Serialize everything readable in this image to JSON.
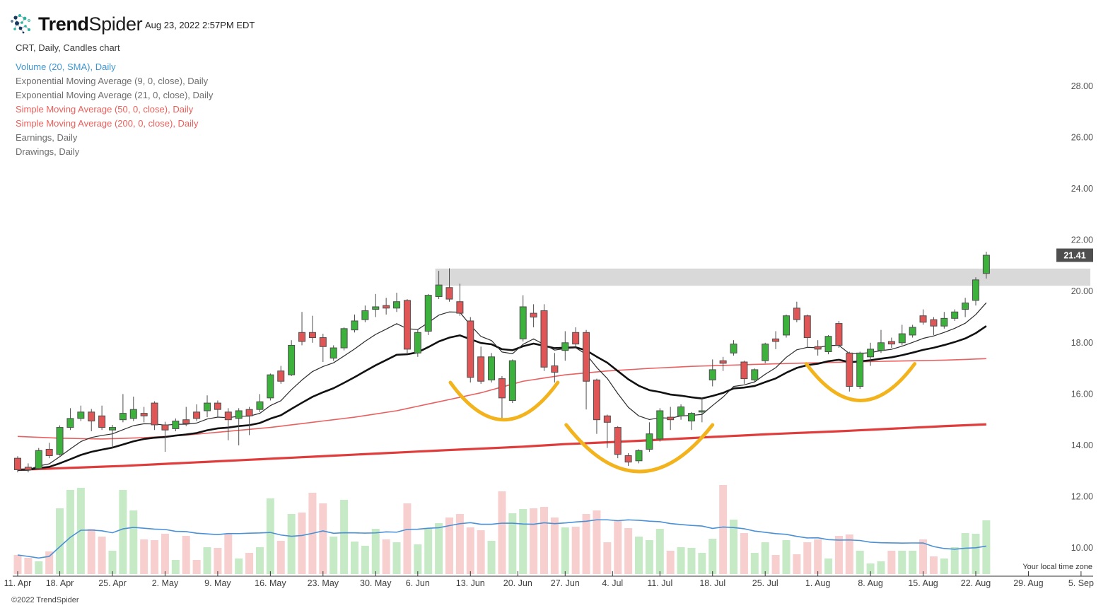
{
  "header": {
    "brand_bold": "Trend",
    "brand_light": "Spider",
    "timestamp": "Aug 23, 2022 2:57PM EDT"
  },
  "legend": {
    "title": "CRT, Daily, Candles chart",
    "items": [
      {
        "label": "Volume (20, SMA), Daily",
        "color": "#3d96d2"
      },
      {
        "label": "Exponential Moving Average (9, 0, close), Daily",
        "color": "#6e6e6e"
      },
      {
        "label": "Exponential Moving Average (21, 0, close), Daily",
        "color": "#6e6e6e"
      },
      {
        "label": "Simple Moving Average (50, 0, close), Daily",
        "color": "#ed5f5a"
      },
      {
        "label": "Simple Moving Average (200, 0, close), Daily",
        "color": "#ed5f5a"
      },
      {
        "label": "Earnings, Daily",
        "color": "#6e6e6e"
      },
      {
        "label": "Drawings, Daily",
        "color": "#6e6e6e"
      }
    ]
  },
  "footer": {
    "copyright": "©2022 TrendSpider",
    "timezone_note": "Your local time zone"
  },
  "price_axis": {
    "labels": [
      "28.00",
      "26.00",
      "24.00",
      "22.00",
      "20.00",
      "18.00",
      "16.00",
      "14.00",
      "12.00",
      "10.00"
    ],
    "last_price": "21.41"
  },
  "x_axis": {
    "ticks": [
      {
        "label": "11. Apr",
        "index": 0
      },
      {
        "label": "18. Apr",
        "index": 4
      },
      {
        "label": "25. Apr",
        "index": 9
      },
      {
        "label": "2. May",
        "index": 14
      },
      {
        "label": "9. May",
        "index": 19
      },
      {
        "label": "16. May",
        "index": 24
      },
      {
        "label": "23. May",
        "index": 29
      },
      {
        "label": "30. May",
        "index": 34
      },
      {
        "label": "6. Jun",
        "index": 38
      },
      {
        "label": "13. Jun",
        "index": 43
      },
      {
        "label": "20. Jun",
        "index": 47.5
      },
      {
        "label": "27. Jun",
        "index": 52
      },
      {
        "label": "4. Jul",
        "index": 56.5
      },
      {
        "label": "11. Jul",
        "index": 61
      },
      {
        "label": "18. Jul",
        "index": 66
      },
      {
        "label": "25. Jul",
        "index": 71
      },
      {
        "label": "1. Aug",
        "index": 76
      },
      {
        "label": "8. Aug",
        "index": 81
      },
      {
        "label": "15. Aug",
        "index": 86
      },
      {
        "label": "22. Aug",
        "index": 91
      },
      {
        "label": "29. Aug",
        "index": 96
      },
      {
        "label": "5. Sep",
        "index": 101
      }
    ]
  },
  "chart_data": {
    "type": "candlestick",
    "symbol": "CRT",
    "timeframe": "Daily",
    "ylim": [
      9.0,
      28.5
    ],
    "grid": false,
    "candles_format": [
      "date",
      "open",
      "high",
      "low",
      "close"
    ],
    "candles": [
      [
        "Apr 11",
        13.5,
        13.58,
        12.95,
        13.05
      ],
      [
        "Apr 12",
        13.15,
        13.3,
        12.95,
        13.05
      ],
      [
        "Apr 13",
        13.1,
        13.9,
        13.05,
        13.8
      ],
      [
        "Apr 14",
        13.85,
        14.1,
        13.5,
        13.6
      ],
      [
        "Apr 18",
        13.65,
        14.78,
        13.6,
        14.7
      ],
      [
        "Apr 19",
        14.7,
        15.45,
        14.6,
        15.05
      ],
      [
        "Apr 20",
        15.05,
        15.55,
        14.95,
        15.3
      ],
      [
        "Apr 21",
        15.3,
        15.42,
        14.55,
        14.95
      ],
      [
        "Apr 22",
        15.15,
        15.55,
        14.6,
        14.7
      ],
      [
        "Apr 25",
        14.6,
        14.8,
        13.9,
        14.7
      ],
      [
        "Apr 26",
        15.0,
        16.0,
        14.9,
        15.25
      ],
      [
        "Apr 27",
        15.05,
        15.9,
        14.95,
        15.4
      ],
      [
        "Apr 28",
        15.25,
        15.5,
        14.9,
        15.15
      ],
      [
        "Apr 29",
        15.65,
        15.72,
        14.6,
        14.8
      ],
      [
        "May 2",
        14.8,
        14.92,
        13.75,
        14.6
      ],
      [
        "May 3",
        14.65,
        15.05,
        14.55,
        14.95
      ],
      [
        "May 4",
        15.0,
        15.5,
        14.75,
        14.85
      ],
      [
        "May 5",
        15.3,
        15.6,
        14.95,
        15.05
      ],
      [
        "May 6",
        15.35,
        15.95,
        15.1,
        15.65
      ],
      [
        "May 9",
        15.65,
        15.75,
        15.1,
        15.4
      ],
      [
        "May 10",
        15.3,
        15.45,
        14.2,
        15.0
      ],
      [
        "May 11",
        15.05,
        15.45,
        14.0,
        15.35
      ],
      [
        "May 12",
        15.4,
        15.5,
        14.4,
        15.15
      ],
      [
        "May 13",
        15.4,
        16.0,
        15.3,
        15.7
      ],
      [
        "May 16",
        15.85,
        16.8,
        15.75,
        16.75
      ],
      [
        "May 17",
        16.9,
        17.1,
        16.4,
        16.5
      ],
      [
        "May 18",
        16.75,
        18.1,
        16.7,
        17.9
      ],
      [
        "May 19",
        18.4,
        19.2,
        17.9,
        18.05
      ],
      [
        "May 20",
        18.4,
        19.05,
        18.0,
        18.2
      ],
      [
        "May 23",
        18.2,
        18.35,
        17.25,
        17.85
      ],
      [
        "May 24",
        17.4,
        17.9,
        17.3,
        17.8
      ],
      [
        "May 25",
        17.8,
        18.6,
        17.7,
        18.55
      ],
      [
        "May 26",
        18.5,
        19.1,
        18.4,
        18.85
      ],
      [
        "May 27",
        18.9,
        19.45,
        18.8,
        19.25
      ],
      [
        "May 31",
        19.3,
        19.9,
        19.0,
        19.4
      ],
      [
        "Jun 1",
        19.45,
        19.75,
        19.1,
        19.35
      ],
      [
        "Jun 2",
        19.35,
        19.95,
        19.2,
        19.6
      ],
      [
        "Jun 3",
        19.65,
        19.7,
        17.55,
        17.75
      ],
      [
        "Jun 6",
        17.6,
        18.5,
        17.45,
        18.4
      ],
      [
        "Jun 7",
        18.45,
        19.9,
        18.3,
        19.85
      ],
      [
        "Jun 8",
        19.8,
        20.8,
        19.7,
        20.25
      ],
      [
        "Jun 9",
        20.15,
        20.9,
        19.6,
        19.7
      ],
      [
        "Jun 10",
        19.6,
        20.3,
        19.05,
        19.15
      ],
      [
        "Jun 13",
        18.85,
        19.0,
        16.45,
        16.65
      ],
      [
        "Jun 14",
        17.45,
        17.85,
        16.4,
        16.5
      ],
      [
        "Jun 15",
        16.55,
        17.6,
        16.45,
        17.45
      ],
      [
        "Jun 16",
        16.6,
        16.7,
        15.05,
        15.85
      ],
      [
        "Jun 17",
        15.75,
        17.35,
        15.65,
        17.3
      ],
      [
        "Jun 21",
        18.15,
        19.85,
        18.05,
        19.4
      ],
      [
        "Jun 22",
        19.15,
        19.5,
        18.6,
        19.0
      ],
      [
        "Jun 23",
        19.25,
        19.5,
        16.9,
        17.05
      ],
      [
        "Jun 24",
        17.1,
        17.6,
        16.45,
        16.85
      ],
      [
        "Jun 27",
        17.7,
        18.45,
        17.3,
        18.0
      ],
      [
        "Jun 28",
        18.4,
        18.6,
        17.85,
        17.95
      ],
      [
        "Jun 29",
        18.4,
        18.5,
        15.4,
        16.5
      ],
      [
        "Jun 30",
        16.55,
        16.6,
        14.45,
        15.0
      ],
      [
        "Jul 1",
        15.15,
        15.2,
        13.9,
        14.9
      ],
      [
        "Jul 5",
        14.7,
        14.75,
        13.5,
        13.65
      ],
      [
        "Jul 6",
        13.6,
        13.7,
        13.2,
        13.35
      ],
      [
        "Jul 7",
        13.4,
        13.85,
        13.3,
        13.8
      ],
      [
        "Jul 8",
        13.85,
        14.9,
        13.75,
        14.45
      ],
      [
        "Jul 11",
        14.25,
        15.45,
        14.15,
        15.35
      ],
      [
        "Jul 12",
        15.1,
        15.5,
        14.6,
        15.0
      ],
      [
        "Jul 13",
        15.15,
        15.6,
        15.0,
        15.5
      ],
      [
        "Jul 14",
        14.95,
        15.3,
        14.6,
        15.25
      ],
      [
        "Jul 15",
        15.3,
        15.85,
        14.9,
        15.35
      ],
      [
        "Jul 18",
        16.55,
        17.35,
        16.3,
        16.95
      ],
      [
        "Jul 19",
        17.3,
        17.45,
        16.9,
        17.2
      ],
      [
        "Jul 20",
        17.6,
        18.1,
        17.5,
        17.95
      ],
      [
        "Jul 21",
        17.25,
        17.3,
        16.4,
        16.6
      ],
      [
        "Jul 22",
        16.55,
        17.0,
        16.45,
        16.95
      ],
      [
        "Jul 25",
        17.3,
        18.0,
        17.2,
        17.95
      ],
      [
        "Jul 26",
        18.15,
        18.45,
        17.75,
        18.05
      ],
      [
        "Jul 27",
        18.3,
        19.1,
        18.2,
        19.05
      ],
      [
        "Jul 28",
        19.35,
        19.6,
        18.8,
        18.9
      ],
      [
        "Jul 29",
        19.05,
        19.1,
        17.8,
        18.2
      ],
      [
        "Aug 1",
        17.85,
        18.1,
        17.5,
        17.75
      ],
      [
        "Aug 2",
        17.65,
        18.3,
        17.55,
        18.25
      ],
      [
        "Aug 3",
        18.75,
        18.85,
        17.8,
        17.9
      ],
      [
        "Aug 4",
        17.6,
        17.65,
        16.1,
        16.3
      ],
      [
        "Aug 5",
        16.3,
        17.65,
        16.2,
        17.6
      ],
      [
        "Aug 8",
        17.45,
        18.0,
        17.1,
        17.75
      ],
      [
        "Aug 9",
        17.7,
        18.5,
        17.6,
        18.0
      ],
      [
        "Aug 10",
        18.05,
        18.2,
        17.8,
        17.95
      ],
      [
        "Aug 11",
        18.0,
        18.7,
        17.9,
        18.35
      ],
      [
        "Aug 12",
        18.3,
        18.7,
        18.2,
        18.6
      ],
      [
        "Aug 15",
        19.05,
        19.3,
        18.7,
        18.8
      ],
      [
        "Aug 16",
        18.9,
        19.0,
        18.3,
        18.65
      ],
      [
        "Aug 17",
        18.65,
        19.2,
        18.55,
        18.95
      ],
      [
        "Aug 18",
        18.95,
        19.3,
        18.85,
        19.2
      ],
      [
        "Aug 19",
        19.3,
        19.75,
        19.0,
        19.55
      ],
      [
        "Aug 22",
        19.65,
        20.55,
        19.45,
        20.45
      ],
      [
        "Aug 23",
        20.7,
        21.55,
        20.5,
        21.41
      ]
    ],
    "volume_relative": [
      27,
      23,
      18,
      32,
      93,
      119,
      122,
      64,
      53,
      33,
      119,
      90,
      49,
      48,
      57,
      20,
      54,
      20,
      38,
      37,
      57,
      22,
      30,
      38,
      107,
      47,
      85,
      87,
      115,
      100,
      53,
      105,
      46,
      40,
      64,
      49,
      45,
      100,
      42,
      65,
      72,
      80,
      85,
      66,
      62,
      47,
      117,
      86,
      92,
      93,
      95,
      80,
      66,
      67,
      85,
      90,
      45,
      75,
      65,
      53,
      48,
      64,
      33,
      38,
      37,
      30,
      50,
      126,
      77,
      58,
      30,
      45,
      27,
      48,
      28,
      45,
      49,
      22,
      54,
      56,
      33,
      15,
      18,
      33,
      33,
      33,
      49,
      25,
      22,
      38,
      58,
      57,
      76
    ],
    "overlays": {
      "ema9": {
        "period": 9
      },
      "ema21": {
        "period": 21
      },
      "volume_sma": {
        "period": 20
      },
      "sma50": {
        "period": 50,
        "points": [
          [
            0,
            14.35
          ],
          [
            4,
            14.28
          ],
          [
            8,
            14.25
          ],
          [
            12,
            14.3
          ],
          [
            16,
            14.4
          ],
          [
            20,
            14.55
          ],
          [
            24,
            14.7
          ],
          [
            28,
            14.9
          ],
          [
            32,
            15.1
          ],
          [
            36,
            15.35
          ],
          [
            40,
            15.7
          ],
          [
            44,
            16.05
          ],
          [
            48,
            16.5
          ],
          [
            52,
            16.75
          ],
          [
            56,
            16.9
          ],
          [
            60,
            17.0
          ],
          [
            64,
            17.08
          ],
          [
            68,
            17.13
          ],
          [
            72,
            17.18
          ],
          [
            76,
            17.22
          ],
          [
            80,
            17.26
          ],
          [
            84,
            17.29
          ],
          [
            88,
            17.32
          ],
          [
            92,
            17.38
          ]
        ]
      },
      "sma200": {
        "period": 200,
        "points": [
          [
            0,
            13.05
          ],
          [
            10,
            13.2
          ],
          [
            20,
            13.4
          ],
          [
            30,
            13.6
          ],
          [
            40,
            13.8
          ],
          [
            48,
            13.95
          ],
          [
            52,
            14.05
          ],
          [
            56,
            14.12
          ],
          [
            60,
            14.2
          ],
          [
            66,
            14.33
          ],
          [
            72,
            14.45
          ],
          [
            78,
            14.55
          ],
          [
            84,
            14.67
          ],
          [
            88,
            14.75
          ],
          [
            92,
            14.82
          ]
        ]
      }
    },
    "drawings": {
      "resistance_zone": {
        "start_index": 40,
        "price_top": 20.89,
        "price_bottom": 20.22,
        "extends_right": true
      },
      "arcs": [
        {
          "start_index": 41.1,
          "end_index": 51.3,
          "price_ends": 16.45,
          "price_bottom": 15.0
        },
        {
          "start_index": 52.1,
          "end_index": 66.0,
          "price_ends": 14.8,
          "price_bottom": 12.98
        },
        {
          "start_index": 74.9,
          "end_index": 85.2,
          "price_ends": 17.18,
          "price_bottom": 15.75
        }
      ]
    }
  },
  "colors": {
    "candle_up": "#3cb23c",
    "candle_down": "#e05656",
    "candle_border": "#4d4d4d",
    "wick": "#4d4d4d",
    "volume_up": "#c6e9c6",
    "volume_down": "#f8cfcf",
    "volume_ma": "#4a90d5",
    "ema9": "#2b2b2b",
    "ema21": "#111111",
    "sma50": "#e96060",
    "sma200": "#e03c3c",
    "zone_gray": "#d9d9d9",
    "drawing_gold": "#f2b31c",
    "badge_bg": "#4f4f4f",
    "badge_text": "#ffffff",
    "axis_text": "#555555",
    "x_axis_text": "#3c3c3c",
    "logo_teal": "#2ab3a0",
    "logo_navy": "#16395e"
  }
}
